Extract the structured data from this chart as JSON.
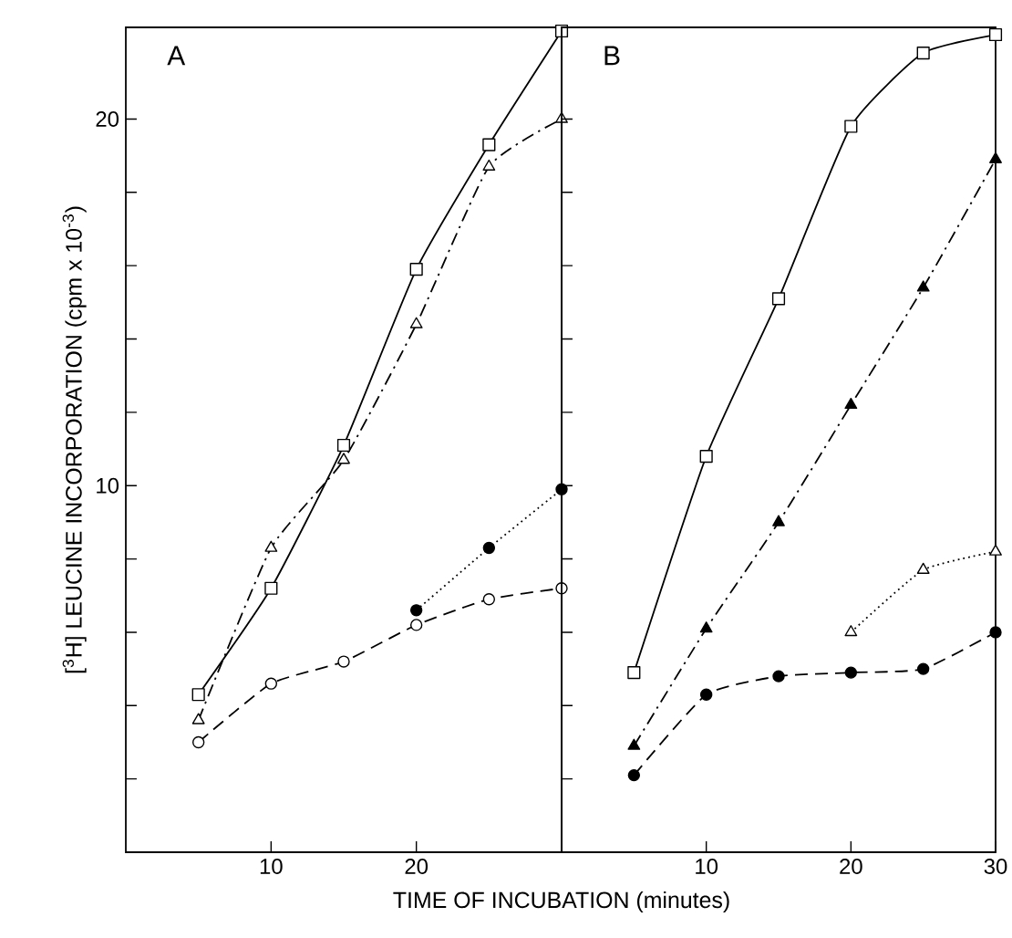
{
  "chart_data": [
    {
      "type": "line",
      "xlabel": "TIME OF INCUBATION (minutes)",
      "ylabel": "[$^{3}$H] LEUCINE INCORPORATION (cpm x 10$^{-3}$)",
      "annotations": [
        "A"
      ],
      "xlim": [
        0,
        30
      ],
      "ylim": [
        0,
        22.5
      ],
      "xticks": [
        10,
        20
      ],
      "yticks": [
        {
          "value": 2,
          "label": null
        },
        {
          "value": 4,
          "label": null
        },
        {
          "value": 6,
          "label": null
        },
        {
          "value": 8,
          "label": null
        },
        10,
        {
          "value": 12,
          "label": null
        },
        {
          "value": 14,
          "label": null
        },
        {
          "value": 16,
          "label": null
        },
        {
          "value": 18,
          "label": null
        },
        20
      ],
      "series": [
        {
          "color": "#000000",
          "marker": "square",
          "line_style": "solid",
          "x": [
            5,
            10,
            15,
            20,
            25,
            30
          ],
          "values": [
            4.3,
            7.2,
            11.1,
            15.9,
            19.3,
            22.4
          ]
        },
        {
          "color": "#000000",
          "marker": "triangle",
          "line_style": "dashdot",
          "x": [
            5,
            10,
            15,
            20,
            25,
            30
          ],
          "values": [
            3.6,
            8.3,
            10.7,
            14.4,
            18.7,
            20.0
          ]
        },
        {
          "color": "#000000",
          "marker": "circle",
          "line_style": "dotted",
          "x": [
            20,
            25,
            30
          ],
          "values": [
            6.6,
            8.3,
            9.9
          ]
        },
        {
          "color": "#000000",
          "marker": "circle",
          "line_style": "dashed",
          "x": [
            5,
            10,
            15,
            20,
            25,
            30
          ],
          "values": [
            3.0,
            4.6,
            5.2,
            6.2,
            6.9,
            7.2
          ]
        }
      ]
    },
    {
      "type": "line",
      "annotations": [
        "B"
      ],
      "tick_labels": "x",
      "xlim": [
        0,
        30
      ],
      "ylim": [
        0,
        22.5
      ],
      "xticks": [
        10,
        20,
        30
      ],
      "yticks": [
        {
          "value": 2,
          "label": null
        },
        {
          "value": 4,
          "label": null
        },
        {
          "value": 6,
          "label": null
        },
        {
          "value": 8,
          "label": null
        },
        {
          "value": 10,
          "label": null
        },
        {
          "value": 12,
          "label": null
        },
        {
          "value": 14,
          "label": null
        },
        {
          "value": 16,
          "label": null
        },
        {
          "value": 18,
          "label": null
        },
        {
          "value": 20,
          "label": null
        }
      ],
      "series": [
        {
          "color": "#000000",
          "marker": "square",
          "line_style": "solid",
          "x": [
            5,
            10,
            15,
            20,
            25,
            30
          ],
          "values": [
            4.9,
            10.8,
            15.1,
            19.8,
            21.8,
            22.3
          ]
        },
        {
          "color": "#000000",
          "marker": "triangle",
          "line_style": "dashdot",
          "x": [
            5,
            10,
            15,
            20,
            25,
            30
          ],
          "values": [
            2.9,
            6.1,
            9.0,
            12.2,
            15.4,
            18.9
          ]
        },
        {
          "color": "#000000",
          "marker": "triangle",
          "line_style": "dotted",
          "x": [
            20,
            25,
            30
          ],
          "values": [
            6.0,
            7.7,
            8.2
          ]
        },
        {
          "color": "#000000",
          "marker": "circle",
          "line_style": "dashed",
          "x": [
            5,
            10,
            15,
            20,
            25,
            30
          ],
          "values": [
            2.1,
            4.3,
            4.8,
            4.9,
            5.0,
            6.0
          ]
        }
      ]
    }
  ]
}
